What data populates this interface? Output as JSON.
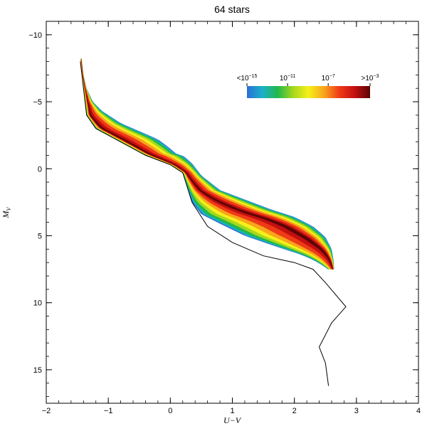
{
  "chart_data": {
    "type": "area",
    "title": "64 stars",
    "xlabel": "U−V",
    "ylabel_main": "M",
    "ylabel_sub": "V",
    "xlim": [
      -2,
      4
    ],
    "ylim": [
      17.5,
      -11
    ],
    "y_inverted": true,
    "x_ticks": [
      {
        "v": -2,
        "label": "−2"
      },
      {
        "v": -1,
        "label": "−1"
      },
      {
        "v": 0,
        "label": "0"
      },
      {
        "v": 1,
        "label": "1"
      },
      {
        "v": 2,
        "label": "2"
      },
      {
        "v": 3,
        "label": "3"
      },
      {
        "v": 4,
        "label": "4"
      }
    ],
    "y_ticks": [
      {
        "v": -10,
        "label": "−10"
      },
      {
        "v": -5,
        "label": "−5"
      },
      {
        "v": 0,
        "label": "0"
      },
      {
        "v": 5,
        "label": "5"
      },
      {
        "v": 10,
        "label": "10"
      },
      {
        "v": 15,
        "label": "15"
      }
    ],
    "main_sequence_line": [
      [
        -1.45,
        -8.0
      ],
      [
        -1.4,
        -6.0
      ],
      [
        -1.35,
        -4.0
      ],
      [
        -1.2,
        -3.0
      ],
      [
        -0.8,
        -2.0
      ],
      [
        -0.4,
        -1.0
      ],
      [
        0.0,
        -0.3
      ],
      [
        0.2,
        0.3
      ],
      [
        0.35,
        2.5
      ],
      [
        0.6,
        4.3
      ],
      [
        1.0,
        5.5
      ],
      [
        1.5,
        6.5
      ],
      [
        2.0,
        7.0
      ],
      [
        2.3,
        7.5
      ],
      [
        2.5,
        8.5
      ],
      [
        2.83,
        10.3
      ],
      [
        2.6,
        11.5
      ],
      [
        2.4,
        13.3
      ],
      [
        2.5,
        14.5
      ],
      [
        2.55,
        16.2
      ]
    ],
    "density_band": {
      "upper_edge": [
        [
          -1.43,
          -8.2
        ],
        [
          -1.4,
          -7.0
        ],
        [
          -1.35,
          -6.0
        ],
        [
          -1.25,
          -5.0
        ],
        [
          -1.1,
          -4.3
        ],
        [
          -0.8,
          -3.4
        ],
        [
          -0.5,
          -2.8
        ],
        [
          -0.2,
          -2.2
        ],
        [
          0.0,
          -1.5
        ],
        [
          0.1,
          -1.1
        ],
        [
          0.2,
          -1.0
        ],
        [
          0.35,
          -0.4
        ],
        [
          0.5,
          0.5
        ],
        [
          0.8,
          1.6
        ],
        [
          1.2,
          2.3
        ],
        [
          1.6,
          3.0
        ],
        [
          2.0,
          3.6
        ],
        [
          2.3,
          4.3
        ],
        [
          2.5,
          5.1
        ],
        [
          2.6,
          6.0
        ],
        [
          2.63,
          6.8
        ],
        [
          2.64,
          7.5
        ]
      ],
      "lower_edge": [
        [
          2.54,
          7.5
        ],
        [
          2.45,
          7.2
        ],
        [
          2.3,
          6.8
        ],
        [
          2.1,
          6.4
        ],
        [
          1.7,
          5.8
        ],
        [
          1.2,
          5.0
        ],
        [
          0.8,
          4.1
        ],
        [
          0.5,
          3.4
        ],
        [
          0.35,
          2.5
        ],
        [
          0.2,
          0.3
        ],
        [
          0.0,
          -0.3
        ],
        [
          -0.4,
          -1.0
        ],
        [
          -0.8,
          -2.0
        ],
        [
          -1.2,
          -3.0
        ],
        [
          -1.35,
          -4.0
        ],
        [
          -1.4,
          -6.0
        ],
        [
          -1.45,
          -8.0
        ]
      ],
      "ridge_width": [
        [
          -8.2,
          0.2
        ],
        [
          -6.0,
          0.5
        ],
        [
          -4.0,
          0.85
        ],
        [
          -2.0,
          0.85
        ],
        [
          0.0,
          0.8
        ],
        [
          2.0,
          0.6
        ],
        [
          4.0,
          0.32
        ],
        [
          6.0,
          0.2
        ],
        [
          7.5,
          0.15
        ]
      ]
    },
    "colorbar": {
      "labels": [
        {
          "text": "<10",
          "exp": "−15",
          "pos": 0.0
        },
        {
          "text": "10",
          "exp": "−11",
          "pos": 0.33
        },
        {
          "text": "10",
          "exp": "−7",
          "pos": 0.66
        },
        {
          "text": ">10",
          "exp": "−3",
          "pos": 1.0
        }
      ],
      "colors": [
        "#2a6fd6",
        "#1ab0c8",
        "#22b84a",
        "#a6d81e",
        "#f6f01a",
        "#f8a61a",
        "#ef3a18",
        "#c40f10",
        "#5a0505"
      ]
    }
  }
}
